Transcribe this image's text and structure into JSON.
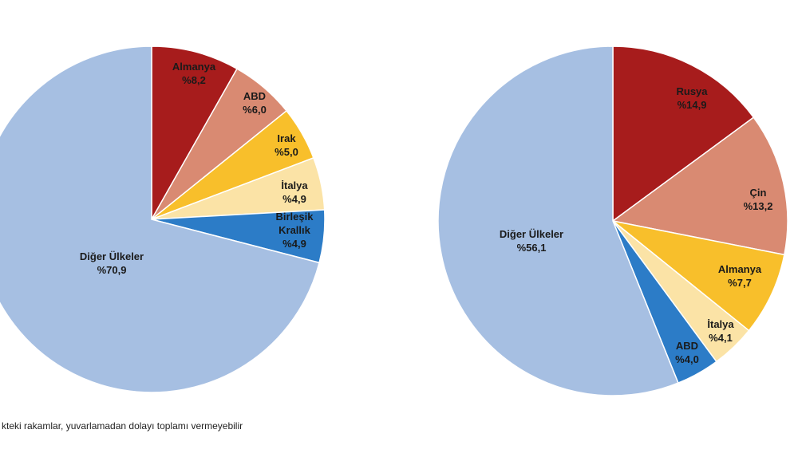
{
  "footnote": "kteki rakamlar, yuvarlamadan dolayı toplamı vermeyebilir",
  "chart_data": [
    {
      "type": "pie",
      "slices": [
        {
          "label": "Almanya",
          "value": 8.2,
          "value_label": "%8,2",
          "color": "#a71c1c"
        },
        {
          "label": "ABD",
          "value": 6.0,
          "value_label": "%6,0",
          "color": "#d98a72"
        },
        {
          "label": "Irak",
          "value": 5.0,
          "value_label": "%5,0",
          "color": "#f8bf2b"
        },
        {
          "label": "İtalya",
          "value": 4.9,
          "value_label": "%4,9",
          "color": "#fbe3a6"
        },
        {
          "label": "Birleşik Krallık",
          "value": 4.9,
          "value_label": "%4,9",
          "color": "#2c7cc7"
        },
        {
          "label": "Diğer Ülkeler",
          "value": 70.9,
          "value_label": "%70,9",
          "color": "#a6bfe2"
        }
      ]
    },
    {
      "type": "pie",
      "slices": [
        {
          "label": "Rusya",
          "value": 14.9,
          "value_label": "%14,9",
          "color": "#a71c1c"
        },
        {
          "label": "Çin",
          "value": 13.2,
          "value_label": "%13,2",
          "color": "#d98a72"
        },
        {
          "label": "Almanya",
          "value": 7.7,
          "value_label": "%7,7",
          "color": "#f8bf2b"
        },
        {
          "label": "İtalya",
          "value": 4.1,
          "value_label": "%4,1",
          "color": "#fbe3a6"
        },
        {
          "label": "ABD",
          "value": 4.0,
          "value_label": "%4,0",
          "color": "#2c7cc7"
        },
        {
          "label": "Diğer Ülkeler",
          "value": 56.1,
          "value_label": "%56,1",
          "color": "#a6bfe2"
        }
      ]
    }
  ]
}
